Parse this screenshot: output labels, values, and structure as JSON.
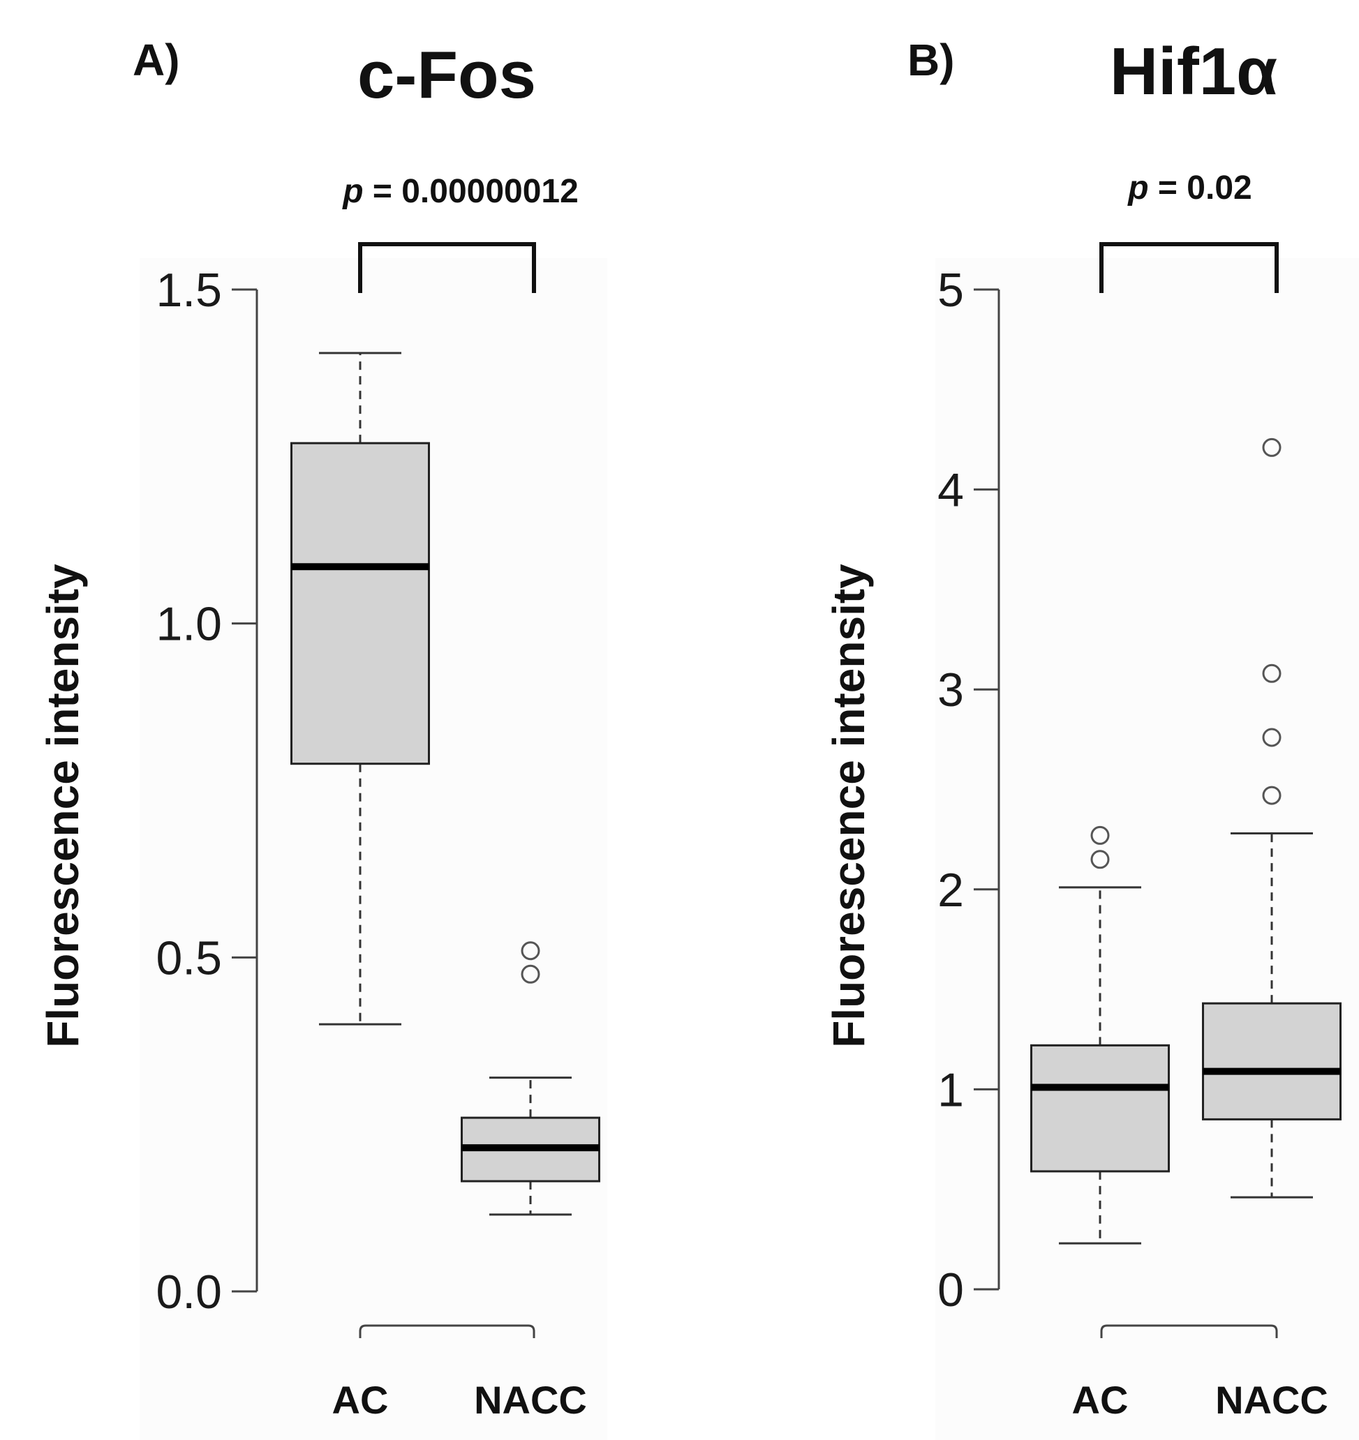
{
  "chart_data": [
    {
      "type": "boxplot",
      "panel_label": "A)",
      "title": "c-Fos",
      "ylabel": "Fluorescence intensity",
      "xlabel": "",
      "ylim": [
        0,
        1.5
      ],
      "yticks": [
        "0.0",
        "0.5",
        "1.0",
        "1.5"
      ],
      "categories": [
        "AC",
        "NACC"
      ],
      "p_prefix": "p",
      "p_suffix": " = 0.00000012",
      "boxes": [
        {
          "name": "AC",
          "whisker_low": 0.4,
          "q1": 0.79,
          "median": 1.085,
          "q3": 1.27,
          "whisker_high": 1.405,
          "outliers": []
        },
        {
          "name": "NACC",
          "whisker_low": 0.115,
          "q1": 0.165,
          "median": 0.215,
          "q3": 0.26,
          "whisker_high": 0.32,
          "outliers": [
            0.51,
            0.475
          ]
        }
      ]
    },
    {
      "type": "boxplot",
      "panel_label": "B)",
      "title": "Hif1α",
      "ylabel": "Fluorescence intensity",
      "xlabel": "",
      "ylim": [
        0,
        5
      ],
      "yticks": [
        "0",
        "1",
        "2",
        "3",
        "4",
        "5"
      ],
      "categories": [
        "AC",
        "NACC"
      ],
      "p_prefix": "p",
      "p_suffix": " = 0.02",
      "boxes": [
        {
          "name": "AC",
          "whisker_low": 0.23,
          "q1": 0.59,
          "median": 1.01,
          "q3": 1.22,
          "whisker_high": 2.01,
          "outliers": [
            2.27,
            2.15
          ]
        },
        {
          "name": "NACC",
          "whisker_low": 0.46,
          "q1": 0.85,
          "median": 1.09,
          "q3": 1.43,
          "whisker_high": 2.28,
          "outliers": [
            4.21,
            3.08,
            2.76,
            2.47
          ]
        }
      ]
    }
  ]
}
